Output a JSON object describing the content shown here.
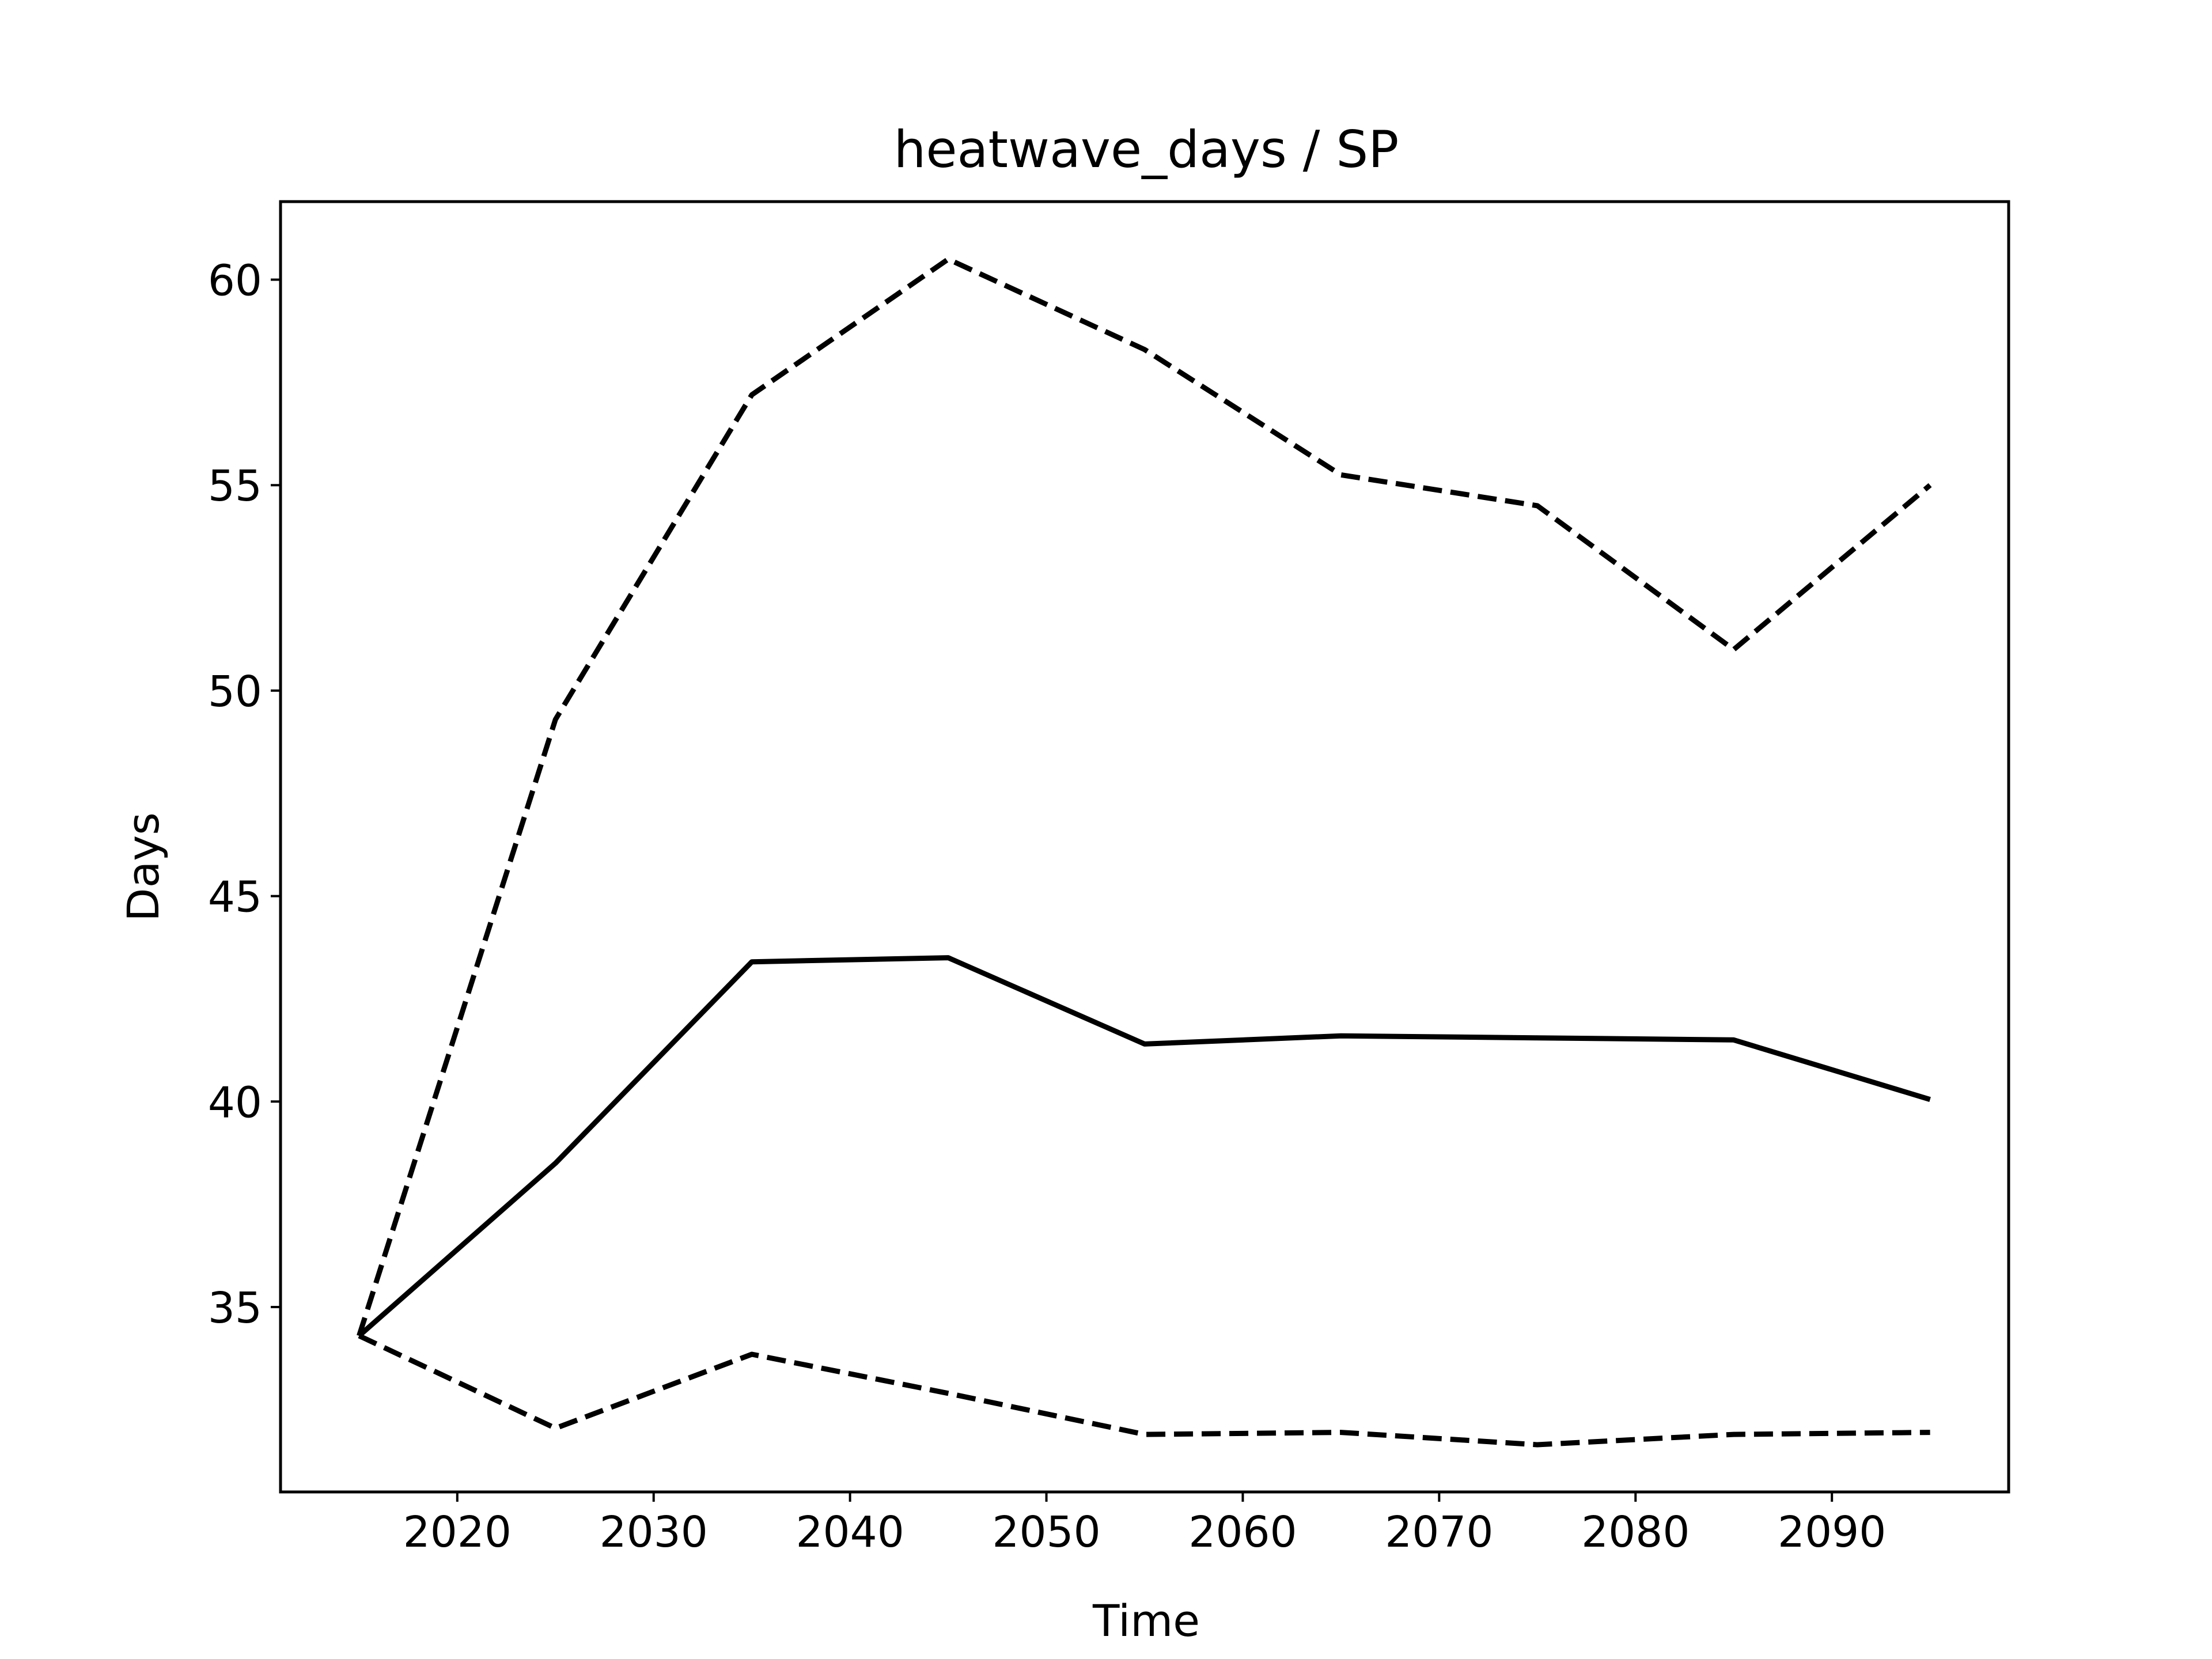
{
  "chart_data": {
    "type": "line",
    "title": "heatwave_days / SP",
    "xlabel": "Time",
    "ylabel": "Days",
    "xlim": [
      2011,
      2099
    ],
    "ylim": [
      30.5,
      61.9
    ],
    "xticks": [
      2020,
      2030,
      2040,
      2050,
      2060,
      2070,
      2080,
      2090
    ],
    "yticks": [
      35,
      40,
      45,
      50,
      55,
      60
    ],
    "x": [
      2015,
      2025,
      2035,
      2045,
      2055,
      2065,
      2075,
      2085,
      2095
    ],
    "grid": false,
    "legend": "none",
    "series": [
      {
        "style": "solid",
        "color": "#000000",
        "values": [
          34.3,
          38.5,
          43.4,
          43.5,
          41.4,
          41.6,
          41.55,
          41.5,
          40.05
        ]
      },
      {
        "style": "dashed",
        "color": "#000000",
        "values": [
          34.3,
          49.3,
          57.2,
          60.5,
          58.3,
          55.25,
          54.5,
          51.0,
          55.0
        ]
      },
      {
        "style": "dashed",
        "color": "#000000",
        "values": [
          34.3,
          32.05,
          33.85,
          32.9,
          31.9,
          31.95,
          31.65,
          31.9,
          31.95
        ]
      }
    ]
  }
}
